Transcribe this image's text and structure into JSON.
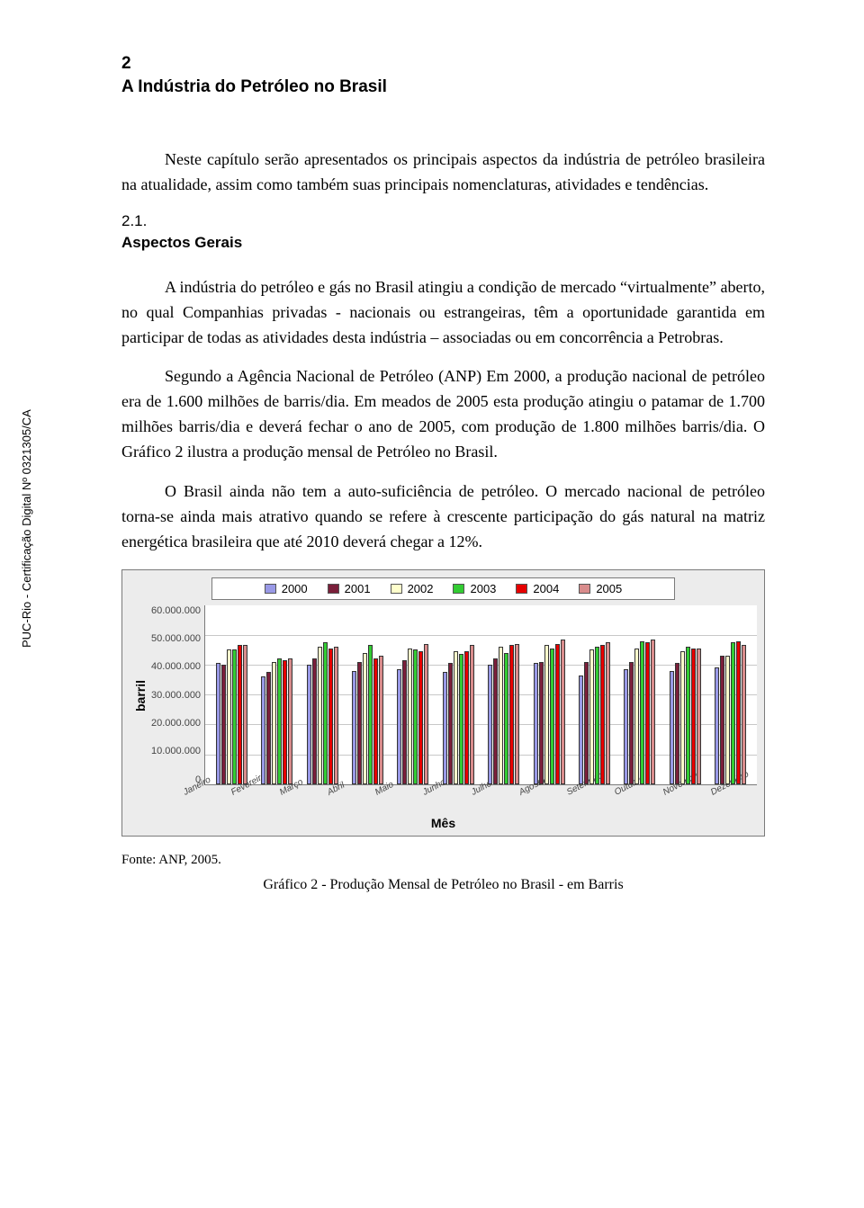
{
  "side_label": "PUC-Rio - Certificação Digital Nº 0321305/CA",
  "chapter": {
    "num": "2",
    "title": "A Indústria do Petróleo no Brasil"
  },
  "intro": "Neste capítulo serão apresentados os principais aspectos da indústria de petróleo brasileira na atualidade, assim como também suas principais nomenclaturas, atividades e tendências.",
  "section": {
    "num": "2.1.",
    "title": "Aspectos Gerais"
  },
  "p1": "A indústria do petróleo e gás no Brasil atingiu a condição de mercado “virtualmente” aberto, no qual Companhias privadas - nacionais ou estrangeiras, têm a oportunidade garantida em participar de todas as atividades desta indústria – associadas ou em concorrência a Petrobras.",
  "p2": "Segundo a Agência Nacional de Petróleo (ANP) Em 2000, a produção nacional de petróleo era de 1.600 milhões de barris/dia. Em meados de 2005 esta produção atingiu o patamar de 1.700 milhões barris/dia e deverá fechar o ano de 2005, com produção de 1.800 milhões barris/dia. O Gráfico 2 ilustra a produção mensal de Petróleo no Brasil.",
  "p3": "O Brasil ainda não tem a auto-suficiência de petróleo. O mercado nacional de petróleo torna-se ainda mais atrativo quando se refere à crescente participação do gás natural na matriz energética brasileira que até 2010 deverá chegar a 12%.",
  "chart": {
    "y_title": "barril",
    "x_title": "Mês",
    "ylim_max": 60000000,
    "y_ticks": [
      "60.000.000",
      "50.000.000",
      "40.000.000",
      "30.000.000",
      "20.000.000",
      "10.000.000",
      "0"
    ],
    "gridlines_pct": [
      16.67,
      33.33,
      50,
      66.67,
      83.33
    ],
    "series": [
      {
        "label": "2000",
        "color": "#9999e6"
      },
      {
        "label": "2001",
        "color": "#7a1f3a"
      },
      {
        "label": "2002",
        "color": "#ffffcc"
      },
      {
        "label": "2003",
        "color": "#33cc33"
      },
      {
        "label": "2004",
        "color": "#e60000"
      },
      {
        "label": "2005",
        "color": "#d98c8c"
      }
    ],
    "months": [
      "Janeiro",
      "Fevereiro",
      "Março",
      "Abril",
      "Maio",
      "Junho",
      "Julho",
      "Agosto",
      "Setembro",
      "Outubro",
      "Novembro",
      "Dezembro"
    ],
    "values": [
      [
        40500000,
        40000000,
        45000000,
        45000000,
        46500000,
        46500000
      ],
      [
        36000000,
        37500000,
        41000000,
        42000000,
        41500000,
        42000000
      ],
      [
        40000000,
        42000000,
        46000000,
        47500000,
        45500000,
        46000000
      ],
      [
        38000000,
        41000000,
        44000000,
        46500000,
        42000000,
        43000000
      ],
      [
        38500000,
        41500000,
        45500000,
        45000000,
        44500000,
        47000000
      ],
      [
        37500000,
        40500000,
        44500000,
        43500000,
        44500000,
        46500000
      ],
      [
        40000000,
        42000000,
        46000000,
        44000000,
        46500000,
        47000000
      ],
      [
        40500000,
        41000000,
        46500000,
        45500000,
        47000000,
        48500000
      ],
      [
        36500000,
        41000000,
        45000000,
        46000000,
        46500000,
        47500000
      ],
      [
        38500000,
        41000000,
        45500000,
        48000000,
        47500000,
        48500000
      ],
      [
        38000000,
        40500000,
        44500000,
        46000000,
        45500000,
        45500000
      ],
      [
        39000000,
        43000000,
        43000000,
        47500000,
        48000000,
        46500000
      ]
    ]
  },
  "source": "Fonte: ANP, 2005.",
  "caption": "Gráfico 2 - Produção Mensal de Petróleo no Brasil - em Barris"
}
